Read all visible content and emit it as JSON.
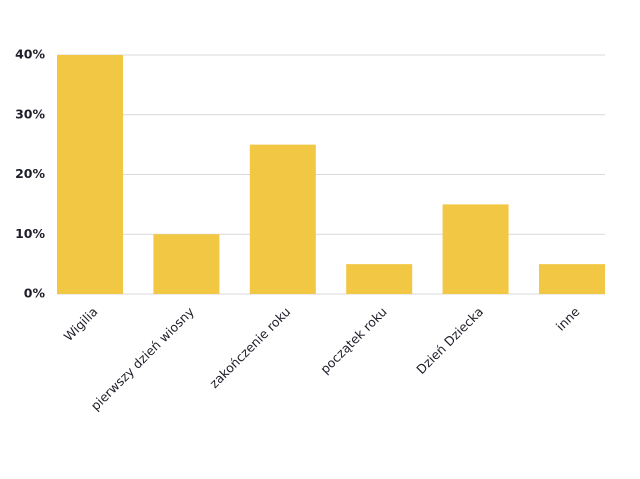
{
  "chart_data": {
    "type": "bar",
    "categories": [
      "Wigilia",
      "pierwszy dzień wiosny",
      "zakończenie roku",
      "początek roku",
      "Dzień Dziecka",
      "inne"
    ],
    "values": [
      40,
      10,
      25,
      5,
      15,
      5
    ],
    "color": "#f2c744",
    "ylim": [
      0,
      40
    ],
    "yticks": [
      {
        "value": 0,
        "label": "0%"
      },
      {
        "value": 10,
        "label": "10%"
      },
      {
        "value": 20,
        "label": "20%"
      },
      {
        "value": 30,
        "label": "30%"
      },
      {
        "value": 40,
        "label": "40%"
      }
    ],
    "grid": true
  }
}
